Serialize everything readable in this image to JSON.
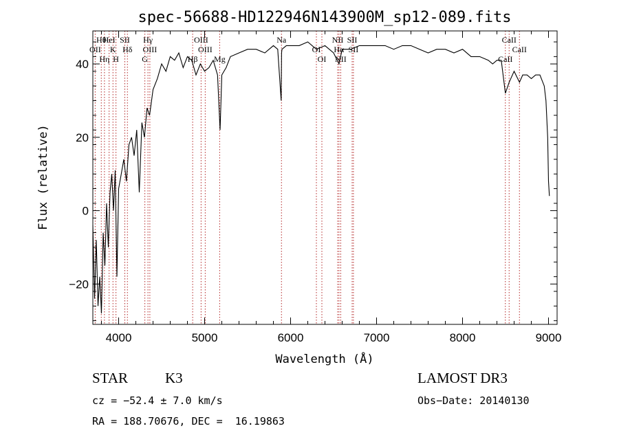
{
  "chart_data": {
    "type": "line",
    "title": "spec-56688-HD122946N143900M_sp12-089.fits",
    "xlabel": "Wavelength (Å)",
    "ylabel": "Flux (relative)",
    "xlim": [
      3700,
      9100
    ],
    "ylim": [
      -31,
      49
    ],
    "xticks": [
      4000,
      5000,
      6000,
      7000,
      8000,
      9000
    ],
    "yticks": [
      -20,
      0,
      20,
      40
    ],
    "grid": false,
    "line_color": "#000000",
    "marker_color": "#b22222",
    "series": [
      {
        "x": [
          3700,
          3720,
          3740,
          3760,
          3780,
          3800,
          3820,
          3840,
          3860,
          3880,
          3900,
          3920,
          3940,
          3960,
          3980,
          4000,
          4030,
          4060,
          4090,
          4120,
          4150,
          4180,
          4210,
          4240,
          4270,
          4300,
          4330,
          4360,
          4400,
          4450,
          4500,
          4550,
          4600,
          4650,
          4700,
          4750,
          4800,
          4850,
          4900,
          4950,
          5000,
          5050,
          5100,
          5150,
          5180,
          5200,
          5250,
          5300,
          5400,
          5500,
          5600,
          5700,
          5800,
          5850,
          5890,
          5895,
          5900,
          5950,
          6000,
          6100,
          6200,
          6300,
          6400,
          6500,
          6563,
          6600,
          6700,
          6800,
          6900,
          7000,
          7100,
          7200,
          7300,
          7400,
          7500,
          7600,
          7700,
          7800,
          7900,
          8000,
          8100,
          8200,
          8300,
          8350,
          8400,
          8450,
          8498,
          8542,
          8600,
          8662,
          8700,
          8750,
          8800,
          8850,
          8900,
          8950,
          8970,
          8990,
          9000,
          9010
        ],
        "y": [
          -4,
          -24,
          -8,
          -26,
          -18,
          -28,
          -6,
          -15,
          2,
          -10,
          5,
          10,
          0,
          11,
          -18,
          6,
          10,
          14,
          8,
          18,
          20,
          15,
          22,
          5,
          24,
          20,
          28,
          26,
          33,
          36,
          40,
          38,
          42,
          41,
          43,
          39,
          42,
          41,
          37,
          40,
          38,
          39,
          41,
          37,
          22,
          37,
          39,
          42,
          43,
          44,
          44,
          43,
          45,
          44,
          30,
          43,
          44,
          45,
          45,
          45,
          46,
          44,
          45,
          43,
          40,
          44,
          44,
          45,
          45,
          45,
          45,
          44,
          45,
          45,
          44,
          43,
          44,
          44,
          43,
          44,
          42,
          42,
          41,
          40,
          41,
          41,
          32,
          35,
          38,
          35,
          37,
          37,
          36,
          37,
          37,
          34,
          30,
          20,
          8,
          4
        ]
      }
    ],
    "line_markers": [
      {
        "name": "Hθ",
        "wl": 3798
      },
      {
        "name": "OII",
        "wl": 3727
      },
      {
        "name": "Hη",
        "wl": 3835
      },
      {
        "name": "HeI",
        "wl": 3889
      },
      {
        "name": "K",
        "wl": 3934
      },
      {
        "name": "H",
        "wl": 3969
      },
      {
        "name": "SII",
        "wl": 4072
      },
      {
        "name": "Hδ",
        "wl": 4102
      },
      {
        "name": "G",
        "wl": 4305
      },
      {
        "name": "Hγ",
        "wl": 4341
      },
      {
        "name": "OIII",
        "wl": 4363
      },
      {
        "name": "Hβ",
        "wl": 4861
      },
      {
        "name": "OIII",
        "wl": 4959
      },
      {
        "name": "OIII",
        "wl": 5007
      },
      {
        "name": "Mg",
        "wl": 5175
      },
      {
        "name": "Na",
        "wl": 5894
      },
      {
        "name": "OI",
        "wl": 6300
      },
      {
        "name": "OI",
        "wl": 6364
      },
      {
        "name": "NII",
        "wl": 6548
      },
      {
        "name": "Hα",
        "wl": 6563
      },
      {
        "name": "NII",
        "wl": 6583
      },
      {
        "name": "SII",
        "wl": 6716
      },
      {
        "name": "SII",
        "wl": 6731
      },
      {
        "name": "CaII",
        "wl": 8498
      },
      {
        "name": "CaII",
        "wl": 8542
      },
      {
        "name": "CaII",
        "wl": 8662
      }
    ]
  },
  "info": {
    "object_class": "STAR",
    "subclass": "K3",
    "survey": "LAMOST DR3",
    "cz": "cz = −52.4 ± 7.0 km/s",
    "obs_date": "Obs−Date: 20140130",
    "coords": "RA = 188.70676, DEC =  16.19863"
  }
}
